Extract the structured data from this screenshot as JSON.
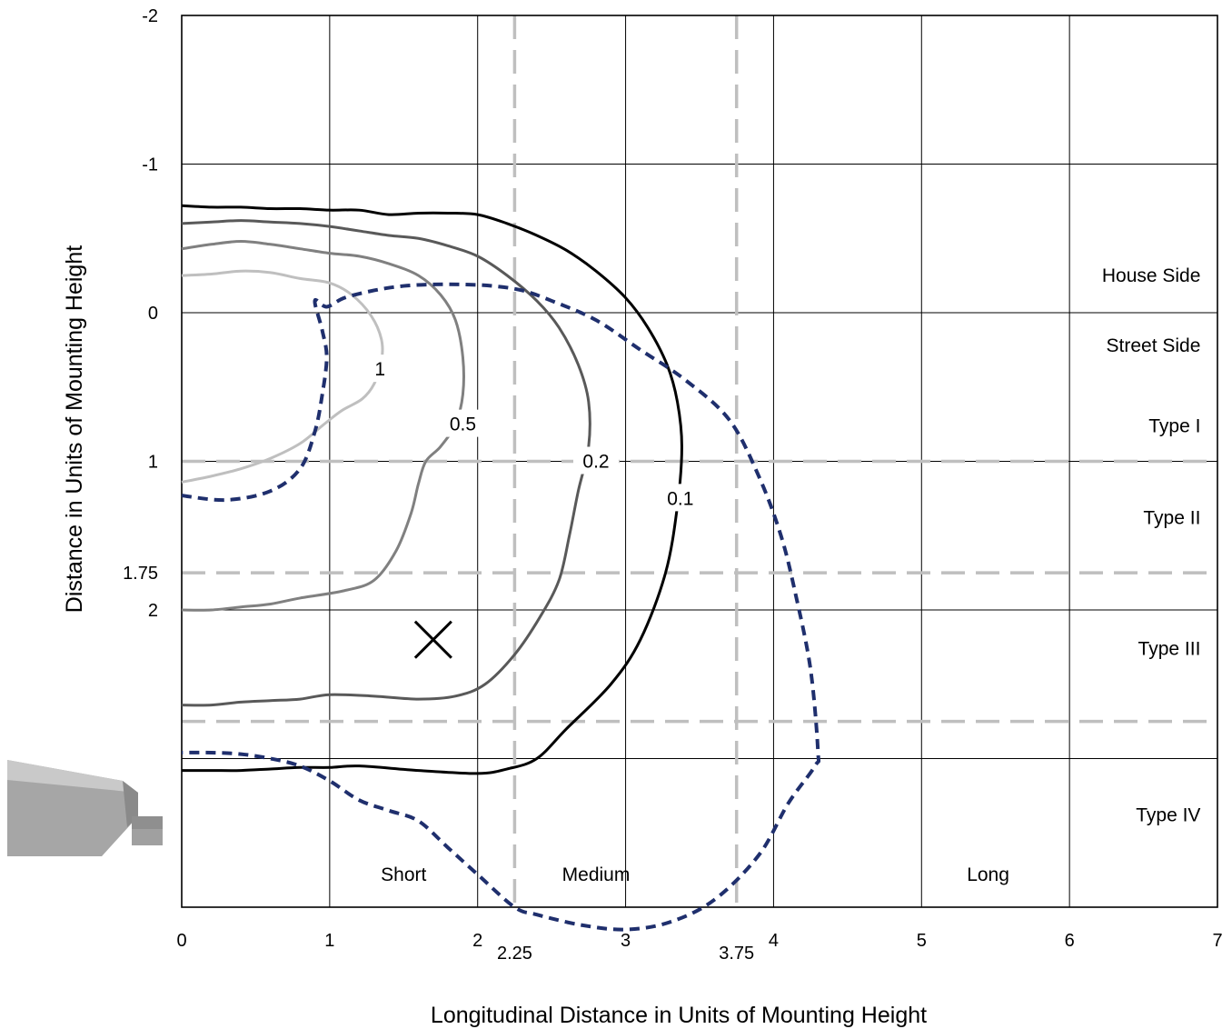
{
  "chart_data": {
    "type": "line",
    "subtype": "isofootcandle contour plot",
    "xlabel": "Longitudinal Distance in Units of Mounting Height",
    "ylabel": "Distance in Units of Mounting Height",
    "xlim": [
      0,
      7
    ],
    "ylim": [
      -2,
      4
    ],
    "y_axis_inverted": true,
    "x_ticks": [
      "0",
      "1",
      "2",
      "3",
      "4",
      "5",
      "6",
      "7"
    ],
    "y_ticks": [
      {
        "value": -2,
        "label": "-2"
      },
      {
        "value": -1,
        "label": "-1"
      },
      {
        "value": 0,
        "label": "0"
      },
      {
        "value": 1,
        "label": "1"
      },
      {
        "value": 1.75,
        "label": "1.75"
      },
      {
        "value": 2,
        "label": "2"
      }
    ],
    "grid": true,
    "reference_lines": {
      "vertical": [
        {
          "value": 2.25,
          "label": "2.25"
        },
        {
          "value": 3.75,
          "label": "3.75"
        }
      ],
      "horizontal": [
        {
          "value": 1
        },
        {
          "value": 1.75
        },
        {
          "value": 2.75
        }
      ],
      "color": "#bfbfbf"
    },
    "zone_labels": [
      {
        "text": "House Side",
        "x": 6.8,
        "y": -0.25
      },
      {
        "text": "Street Side",
        "x": 6.8,
        "y": 0.22
      },
      {
        "text": "Type I",
        "x": 6.8,
        "y": 0.76
      },
      {
        "text": "Type II",
        "x": 6.8,
        "y": 1.38
      },
      {
        "text": "Type III",
        "x": 6.8,
        "y": 2.26
      },
      {
        "text": "Type IV",
        "x": 6.8,
        "y": 3.38
      },
      {
        "text": "Short",
        "x": 1.5,
        "y": 3.78
      },
      {
        "text": "Medium",
        "x": 2.8,
        "y": 3.78
      },
      {
        "text": "Long",
        "x": 5.45,
        "y": 3.78
      }
    ],
    "marker": {
      "symbol": "×",
      "x": 1.7,
      "y": 2.2
    },
    "series": [
      {
        "label": "1",
        "color": "#bfbfbf",
        "style": "solid",
        "label_pos": [
          1.34,
          0.38
        ],
        "x": [
          0,
          0.2,
          0.4,
          0.6,
          0.8,
          1.0,
          1.15,
          1.28,
          1.35,
          1.35,
          1.3,
          1.22,
          1.08,
          0.95,
          0.8,
          0.6,
          0.4,
          0.2,
          0
        ],
        "y": [
          -0.25,
          -0.26,
          -0.28,
          -0.27,
          -0.23,
          -0.2,
          -0.12,
          0.02,
          0.18,
          0.33,
          0.48,
          0.58,
          0.66,
          0.76,
          0.88,
          0.98,
          1.05,
          1.1,
          1.14
        ]
      },
      {
        "label": "0.5",
        "color": "#808080",
        "style": "solid",
        "label_pos": [
          1.9,
          0.75
        ],
        "x": [
          0,
          0.2,
          0.4,
          0.6,
          0.8,
          1.0,
          1.2,
          1.4,
          1.6,
          1.75,
          1.85,
          1.9,
          1.9,
          1.85,
          1.75,
          1.65,
          1.6,
          1.55,
          1.45,
          1.3,
          1.1,
          0.8,
          0.6,
          0.4,
          0.2,
          0
        ],
        "y": [
          -0.43,
          -0.46,
          -0.48,
          -0.46,
          -0.43,
          -0.4,
          -0.38,
          -0.33,
          -0.25,
          -0.12,
          0.05,
          0.3,
          0.55,
          0.75,
          0.9,
          1.0,
          1.15,
          1.35,
          1.6,
          1.8,
          1.87,
          1.92,
          1.96,
          1.98,
          2.0,
          2.0
        ]
      },
      {
        "label": "0.2",
        "color": "#595959",
        "style": "solid",
        "label_pos": [
          2.8,
          1.0
        ],
        "x": [
          0,
          0.2,
          0.4,
          0.6,
          0.8,
          1.0,
          1.2,
          1.4,
          1.6,
          1.8,
          2.0,
          2.2,
          2.4,
          2.55,
          2.68,
          2.75,
          2.75,
          2.68,
          2.62,
          2.55,
          2.42,
          2.25,
          2.05,
          1.85,
          1.6,
          1.3,
          1.0,
          0.8,
          0.6,
          0.4,
          0.2,
          0
        ],
        "y": [
          -0.6,
          -0.61,
          -0.62,
          -0.61,
          -0.6,
          -0.58,
          -0.55,
          -0.52,
          -0.5,
          -0.45,
          -0.38,
          -0.25,
          -0.08,
          0.1,
          0.35,
          0.6,
          0.9,
          1.2,
          1.5,
          1.8,
          2.05,
          2.3,
          2.5,
          2.58,
          2.6,
          2.58,
          2.57,
          2.6,
          2.61,
          2.62,
          2.64,
          2.64
        ]
      },
      {
        "label": "0.1",
        "color": "#000000",
        "style": "solid",
        "label_pos": [
          3.37,
          1.25
        ],
        "x": [
          0,
          0.2,
          0.4,
          0.6,
          0.8,
          1.0,
          1.2,
          1.4,
          1.6,
          1.8,
          2.0,
          2.2,
          2.4,
          2.6,
          2.8,
          3.0,
          3.15,
          3.28,
          3.35,
          3.38,
          3.35,
          3.27,
          3.1,
          2.9,
          2.6,
          2.4,
          2.2,
          2.0,
          1.6,
          1.2,
          1.0,
          0.8,
          0.6,
          0.4,
          0.2,
          0
        ],
        "y": [
          -0.72,
          -0.71,
          -0.71,
          -0.7,
          -0.7,
          -0.69,
          -0.69,
          -0.66,
          -0.67,
          -0.67,
          -0.66,
          -0.6,
          -0.52,
          -0.42,
          -0.28,
          -0.1,
          0.1,
          0.35,
          0.6,
          0.9,
          1.3,
          1.75,
          2.2,
          2.5,
          2.8,
          3.0,
          3.07,
          3.1,
          3.08,
          3.05,
          3.06,
          3.06,
          3.07,
          3.08,
          3.08,
          3.08
        ]
      },
      {
        "label": "",
        "color": "#1f2f6d",
        "style": "dashed",
        "x": [
          0,
          0.3,
          0.6,
          0.8,
          0.9,
          0.95,
          0.98,
          0.95,
          0.9,
          0.98,
          1.1,
          1.3,
          1.5,
          1.7,
          1.9,
          2.1,
          2.3,
          2.5,
          2.8,
          3.1,
          3.4,
          3.7,
          3.9,
          4.05,
          4.15,
          4.25,
          4.3,
          4.28,
          4.1,
          3.9,
          3.6,
          3.3,
          3.0,
          2.7,
          2.4,
          2.25,
          2.0,
          1.8,
          1.6,
          1.4,
          1.2,
          1.0,
          0.8,
          0.6,
          0.4,
          0.2,
          0
        ],
        "y": [
          1.23,
          1.26,
          1.2,
          1.05,
          0.8,
          0.55,
          0.3,
          0.12,
          -0.08,
          -0.04,
          -0.1,
          -0.15,
          -0.18,
          -0.19,
          -0.19,
          -0.18,
          -0.15,
          -0.08,
          0.05,
          0.25,
          0.45,
          0.72,
          1.1,
          1.5,
          1.9,
          2.4,
          2.95,
          3.05,
          3.3,
          3.65,
          3.95,
          4.1,
          4.15,
          4.12,
          4.05,
          4.0,
          3.78,
          3.6,
          3.42,
          3.35,
          3.28,
          3.15,
          3.05,
          3.0,
          2.97,
          2.96,
          2.96
        ]
      }
    ]
  }
}
